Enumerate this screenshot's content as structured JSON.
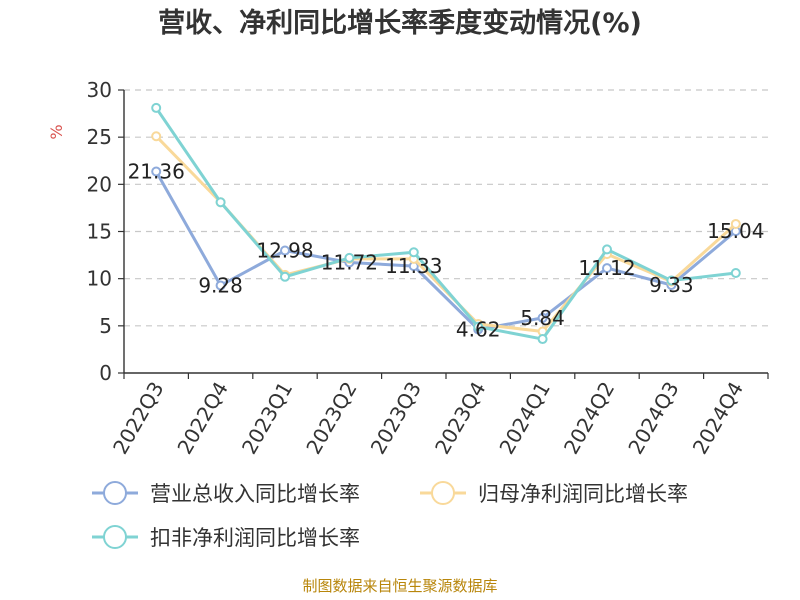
{
  "source_text": "制图数据来自恒生聚源数据库",
  "chart_data": {
    "type": "line",
    "title": "营收、净利同比增长率季度变动情况(%)",
    "ylabel": "%",
    "xlabel": "",
    "ylim": [
      0,
      30
    ],
    "yticks": [
      0,
      5,
      10,
      15,
      20,
      25,
      30
    ],
    "grid": true,
    "legend_position": "bottom",
    "categories": [
      "2022Q3",
      "2022Q4",
      "2023Q1",
      "2023Q2",
      "2023Q3",
      "2023Q4",
      "2024Q1",
      "2024Q2",
      "2024Q3",
      "2024Q4"
    ],
    "series": [
      {
        "name": "营业总收入同比增长率",
        "color": "#8eaadb",
        "values": [
          21.36,
          9.28,
          12.98,
          11.72,
          11.33,
          4.62,
          5.84,
          11.12,
          9.33,
          15.04
        ],
        "labels": [
          "21.36",
          "9.28",
          "12.98",
          "11.72",
          "11.33",
          "4.62",
          "5.84",
          "11.12",
          "9.33",
          "15.04"
        ]
      },
      {
        "name": "归母净利润同比增长率",
        "color": "#f9d99a",
        "values": [
          25.1,
          18.1,
          10.4,
          12.1,
          12.1,
          5.2,
          4.4,
          12.6,
          9.7,
          15.8
        ]
      },
      {
        "name": "扣非净利润同比增长率",
        "color": "#7fd3d3",
        "values": [
          28.1,
          18.1,
          10.2,
          12.2,
          12.8,
          4.9,
          3.6,
          13.1,
          9.8,
          10.6
        ]
      }
    ]
  }
}
